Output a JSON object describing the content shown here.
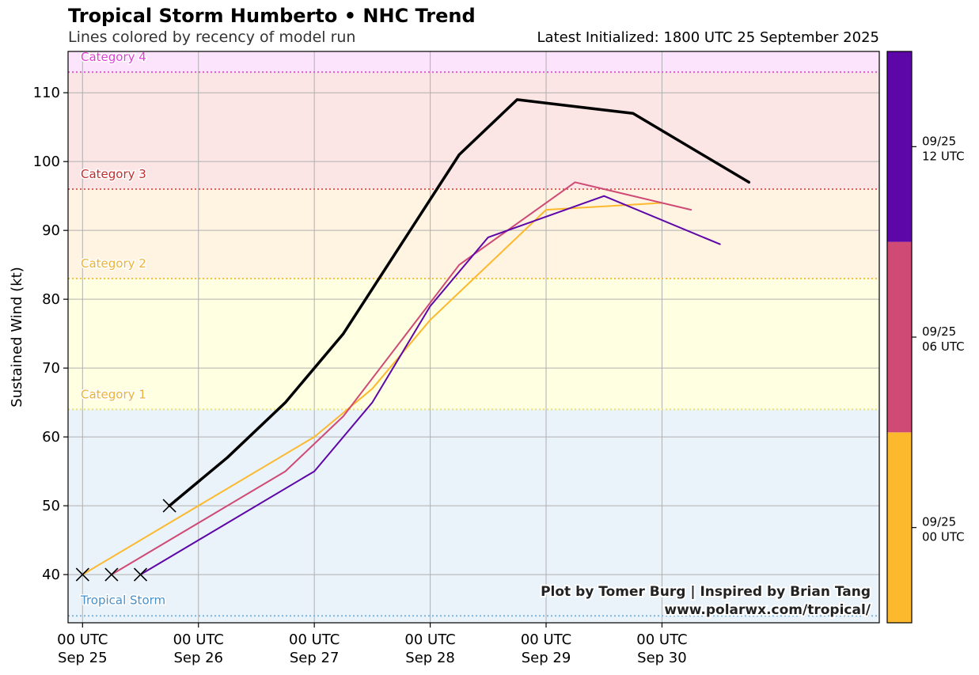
{
  "header": {
    "title": "Tropical Storm Humberto • NHC Trend",
    "subtitle": "Lines colored by recency of model run",
    "latest_init": "Latest Initialized: 1800 UTC 25 September 2025"
  },
  "credit": {
    "line1": "Plot by Tomer Burg | Inspired by Brian Tang",
    "line2": "www.polarwx.com/tropical/"
  },
  "chart_data": {
    "type": "line",
    "ylabel": "Sustained Wind (kt)",
    "xlabel": "",
    "ylim": [
      33,
      116
    ],
    "xlim": [
      "2025-09-24T21:00Z",
      "2025-10-01T21:00Z"
    ],
    "grid": true,
    "yticks": [
      40,
      50,
      60,
      70,
      80,
      90,
      100,
      110
    ],
    "xticks": [
      {
        "t": "2025-09-25T00:00Z",
        "line1": "00 UTC",
        "line2": "Sep 25"
      },
      {
        "t": "2025-09-26T00:00Z",
        "line1": "00 UTC",
        "line2": "Sep 26"
      },
      {
        "t": "2025-09-27T00:00Z",
        "line1": "00 UTC",
        "line2": "Sep 27"
      },
      {
        "t": "2025-09-28T00:00Z",
        "line1": "00 UTC",
        "line2": "Sep 28"
      },
      {
        "t": "2025-09-29T00:00Z",
        "line1": "00 UTC",
        "line2": "Sep 29"
      },
      {
        "t": "2025-09-30T00:00Z",
        "line1": "00 UTC",
        "line2": "Sep 30"
      }
    ],
    "categories": [
      {
        "label": "Tropical Storm",
        "kt": 34,
        "band_top_kt": 64,
        "band_color": "#eaf2fa",
        "line_color": "#7fb6dd",
        "text_color": "#4a90c8"
      },
      {
        "label": "Category 1",
        "kt": 64,
        "band_top_kt": 83,
        "band_color": "#ffffe2",
        "line_color": "#e8e270",
        "text_color": "#ecb336"
      },
      {
        "label": "Category 2",
        "kt": 83,
        "band_top_kt": 96,
        "band_color": "#fff3e2",
        "line_color": "#f2c240",
        "text_color": "#ecb336"
      },
      {
        "label": "Category 3",
        "kt": 96,
        "band_top_kt": 113,
        "band_color": "#fbe5e5",
        "line_color": "#e36060",
        "text_color": "#c22e2e"
      },
      {
        "label": "Category 4",
        "kt": 113,
        "band_top_kt": 116,
        "band_color": "#fde4fd",
        "line_color": "#e05cd6",
        "text_color": "#e040d6"
      }
    ],
    "series": [
      {
        "color": "#fdb92e",
        "width": 2,
        "points": [
          [
            "2025-09-25T00:00Z",
            40
          ],
          [
            "2025-09-27T00:00Z",
            60
          ],
          [
            "2025-09-27T12:00Z",
            67
          ],
          [
            "2025-09-28T00:00Z",
            77
          ],
          [
            "2025-09-29T00:00Z",
            93
          ],
          [
            "2025-09-30T00:00Z",
            94
          ]
        ]
      },
      {
        "color": "#cf4a75",
        "width": 2,
        "points": [
          [
            "2025-09-25T06:00Z",
            40
          ],
          [
            "2025-09-26T18:00Z",
            55
          ],
          [
            "2025-09-27T06:00Z",
            63
          ],
          [
            "2025-09-28T06:00Z",
            85
          ],
          [
            "2025-09-29T06:00Z",
            97
          ],
          [
            "2025-09-30T06:00Z",
            93
          ]
        ]
      },
      {
        "color": "#5e07a8",
        "width": 2,
        "points": [
          [
            "2025-09-25T12:00Z",
            40
          ],
          [
            "2025-09-27T00:00Z",
            55
          ],
          [
            "2025-09-27T12:00Z",
            65
          ],
          [
            "2025-09-28T00:00Z",
            79
          ],
          [
            "2025-09-28T12:00Z",
            89
          ],
          [
            "2025-09-29T12:00Z",
            95
          ],
          [
            "2025-09-30T12:00Z",
            88
          ]
        ]
      },
      {
        "color": "#000000",
        "width": 3.5,
        "points": [
          [
            "2025-09-25T18:00Z",
            50
          ],
          [
            "2025-09-26T06:00Z",
            57
          ],
          [
            "2025-09-26T18:00Z",
            65
          ],
          [
            "2025-09-27T06:00Z",
            75
          ],
          [
            "2025-09-28T06:00Z",
            101
          ],
          [
            "2025-09-28T18:00Z",
            109
          ],
          [
            "2025-09-29T18:00Z",
            107
          ],
          [
            "2025-09-30T18:00Z",
            97
          ]
        ]
      }
    ],
    "initial_markers": [
      [
        "2025-09-25T00:00Z",
        40
      ],
      [
        "2025-09-25T06:00Z",
        40
      ],
      [
        "2025-09-25T12:00Z",
        40
      ],
      [
        "2025-09-25T18:00Z",
        50
      ]
    ]
  },
  "colorbar": {
    "segments": [
      "#fdb92e",
      "#cf4a75",
      "#5e07a8"
    ],
    "ticks": [
      {
        "line1": "09/25",
        "line2": "00 UTC"
      },
      {
        "line1": "09/25",
        "line2": "06 UTC"
      },
      {
        "line1": "09/25",
        "line2": "12 UTC"
      }
    ]
  }
}
